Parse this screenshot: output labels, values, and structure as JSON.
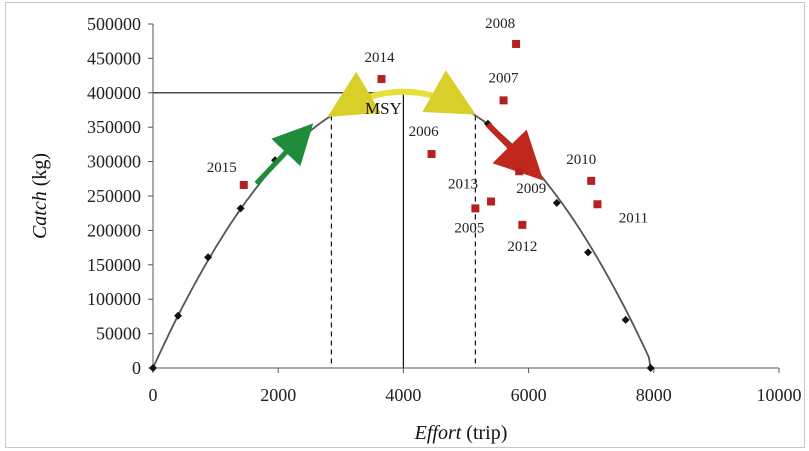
{
  "chart_data": {
    "type": "scatter",
    "xlabel_italic": "Effort",
    "xlabel_unit": " (trip)",
    "ylabel_italic": "Catch",
    "ylabel_unit": " (kg)",
    "xlim": [
      0,
      10000
    ],
    "ylim": [
      0,
      500000
    ],
    "x_ticks": [
      0,
      2000,
      4000,
      6000,
      8000,
      10000
    ],
    "y_ticks": [
      0,
      50000,
      100000,
      150000,
      200000,
      250000,
      300000,
      350000,
      400000,
      450000,
      500000
    ],
    "grid": false,
    "model_curve": {
      "name": "",
      "points": [
        {
          "x": 0,
          "y": 0
        },
        {
          "x": 400,
          "y": 76000
        },
        {
          "x": 880,
          "y": 161000
        },
        {
          "x": 1400,
          "y": 232000
        },
        {
          "x": 1950,
          "y": 302000
        },
        {
          "x": 2450,
          "y": 346000
        },
        {
          "x": 5000,
          "y": 376000
        },
        {
          "x": 5350,
          "y": 355000
        },
        {
          "x": 6450,
          "y": 240000
        },
        {
          "x": 6950,
          "y": 168000
        },
        {
          "x": 7550,
          "y": 70000
        },
        {
          "x": 7950,
          "y": 0
        }
      ],
      "color": "#555555"
    },
    "observed": {
      "color": "#b22222",
      "points": [
        {
          "label": "2005",
          "x": 5150,
          "y": 232000
        },
        {
          "label": "2006",
          "x": 4450,
          "y": 311000
        },
        {
          "label": "2007",
          "x": 5600,
          "y": 389000
        },
        {
          "label": "2008",
          "x": 5800,
          "y": 471000
        },
        {
          "label": "2009",
          "x": 5850,
          "y": 286000
        },
        {
          "label": "2010",
          "x": 7000,
          "y": 272000
        },
        {
          "label": "2011",
          "x": 7100,
          "y": 238000
        },
        {
          "label": "2012",
          "x": 5900,
          "y": 208000
        },
        {
          "label": "2013",
          "x": 5400,
          "y": 242000
        },
        {
          "label": "2014",
          "x": 3650,
          "y": 420000
        },
        {
          "label": "2015",
          "x": 1450,
          "y": 266000
        }
      ]
    },
    "msy": {
      "label": "MSY",
      "x": 4000,
      "y": 400000
    },
    "reference_lines": {
      "msy_effort": 4000,
      "lower_effort": 2850,
      "upper_effort": 5150
    },
    "arrows": [
      {
        "from": [
          1650,
          268000
        ],
        "to": [
          2450,
          345000
        ],
        "color": "#1e8c3a"
      },
      {
        "from": [
          2950,
          372000
        ],
        "to": [
          5000,
          366000
        ],
        "via": [
          4000,
          400000
        ],
        "color": "#e6df3c"
      },
      {
        "from": [
          5350,
          354000
        ],
        "to": [
          6100,
          285000
        ],
        "color": "#c0281e"
      }
    ]
  }
}
